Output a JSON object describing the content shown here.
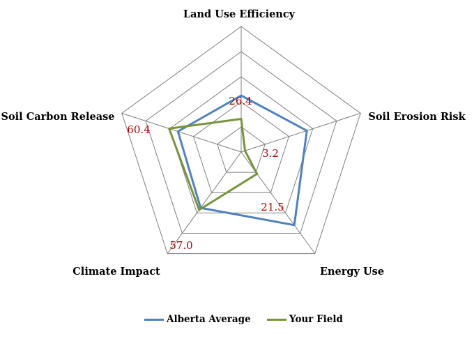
{
  "chart_data": {
    "type": "radar",
    "axes": [
      "Land Use Efficiency",
      "Soil Erosion Risk",
      "Energy Use",
      "Climate Impact",
      "Soil Carbon Release"
    ],
    "rlim": [
      0,
      100
    ],
    "grid_levels": 5,
    "series": [
      {
        "name": "Alberta Average",
        "values": [
          45,
          55,
          72,
          55,
          53
        ],
        "color": "#4f81bd"
      },
      {
        "name": "Your Field",
        "values": [
          26.4,
          3.2,
          21.5,
          57.0,
          60.4
        ],
        "color": "#77933c"
      }
    ],
    "data_labels": [
      "26.4",
      "3.2",
      "21.5",
      "57.0",
      "60.4"
    ],
    "data_label_color": "#b00000",
    "legend_position": "bottom"
  }
}
